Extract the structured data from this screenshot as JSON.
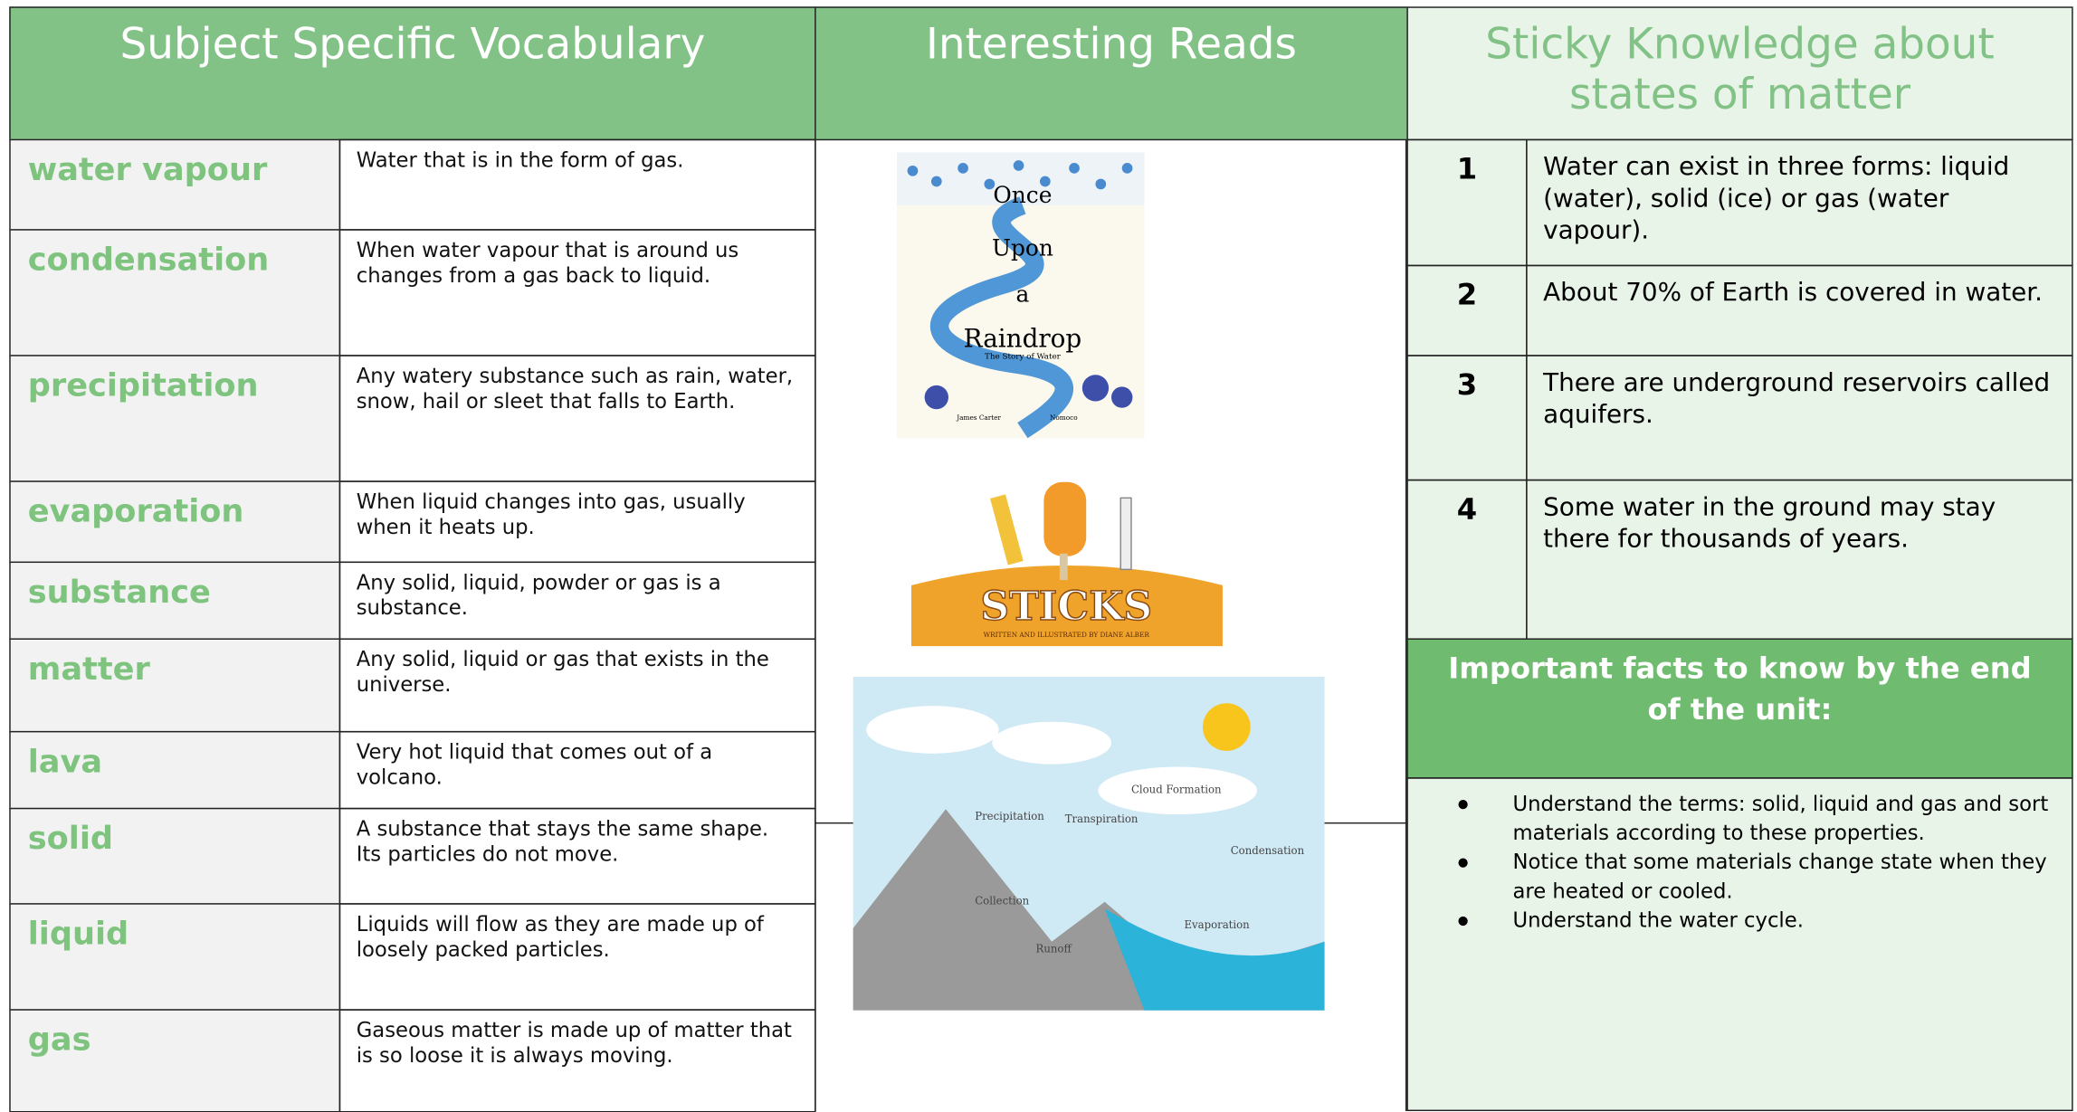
{
  "vocabulary": {
    "title": "Subject Specific Vocabulary",
    "rows": [
      [
        "water vapour",
        "Water that is in the form of gas."
      ],
      [
        "condensation",
        "When water vapour that is around us changes from a gas back to liquid."
      ],
      [
        "precipitation",
        "Any watery substance such as rain, water, snow, hail or sleet that falls to Earth."
      ],
      [
        "evaporation",
        "When liquid changes into gas, usually when it heats up."
      ],
      [
        "substance",
        "Any solid, liquid, powder or gas is a substance."
      ],
      [
        "matter",
        "Any solid, liquid or gas that exists in the universe."
      ],
      [
        "lava",
        "Very hot liquid that comes out of a volcano."
      ],
      [
        "solid",
        "A substance that stays the same shape. Its particles do not move."
      ],
      [
        "liquid",
        "Liquids will flow as they are made up of loosely packed particles."
      ],
      [
        "gas",
        "Gaseous matter is made up of matter that is so loose it is always moving."
      ]
    ]
  },
  "reads": {
    "title": "Interesting Reads",
    "raindrop_cover": [
      "Once",
      "Upon",
      "a",
      "Raindrop",
      "The Story of Water",
      "James Carter",
      "Nomoco"
    ],
    "sticks_cover": [
      "STICKS",
      "WRITTEN AND ILLUSTRATED BY DIANE ALBER"
    ],
    "diagram_labels": [
      "Precipitation",
      "Transpiration",
      "Cloud Formation",
      "Condensation",
      "Collection",
      "Runoff",
      "Evaporation"
    ]
  },
  "sticky": {
    "title": "Sticky Knowledge  about states of matter",
    "facts": [
      [
        "1",
        "Water can exist in three forms: liquid (water), solid (ice) or gas (water vapour)."
      ],
      [
        "2",
        "About 70% of Earth is covered in water."
      ],
      [
        "3",
        "There are underground reservoirs called aquifers."
      ],
      [
        "4",
        "Some water in the ground may stay there for thousands of years."
      ]
    ]
  },
  "important": {
    "title": "Important facts to know by the end of the unit:",
    "bullets": [
      "Understand the terms: solid, liquid and gas and sort materials according to these properties.",
      "Notice that some materials change state when they are heated or cooled.",
      "Understand the water cycle."
    ]
  }
}
